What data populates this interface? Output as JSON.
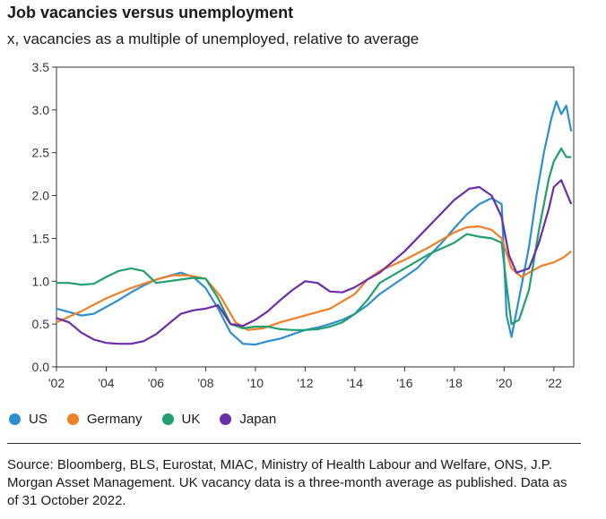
{
  "title": "Job vacancies versus unemployment",
  "subtitle": "x, vacancies as a multiple of unemployed, relative to average",
  "source": "Source: Bloomberg, BLS, Eurostat, MIAC, Ministry of Health Labour and Welfare, ONS, J.P. Morgan Asset Management. UK vacancy data is a three-month average as published. Data as of 31 October 2022.",
  "chart_data": {
    "type": "line",
    "title": "Job vacancies versus unemployment",
    "subtitle": "x, vacancies as a multiple of unemployed, relative to average",
    "ylim": [
      0,
      3.5
    ],
    "xlim": [
      2002,
      2022.8
    ],
    "yticks": [
      "0.0",
      "0.5",
      "1.0",
      "1.5",
      "2.0",
      "2.5",
      "3.0",
      "3.5"
    ],
    "ytick_values": [
      0,
      0.5,
      1.0,
      1.5,
      2.0,
      2.5,
      3.0,
      3.5
    ],
    "xticks": [
      "'02",
      "'04",
      "'06",
      "'08",
      "'10",
      "'12",
      "'14",
      "'16",
      "'18",
      "'20",
      "'22"
    ],
    "xtick_values": [
      2002,
      2004,
      2006,
      2008,
      2010,
      2012,
      2014,
      2016,
      2018,
      2020,
      2022
    ],
    "grid": false,
    "legend_position": "bottom-left",
    "series": [
      {
        "name": "US",
        "color": "#2E8FD0",
        "x": [
          2002,
          2002.5,
          2003,
          2003.5,
          2004,
          2004.5,
          2005,
          2005.5,
          2006,
          2006.5,
          2007,
          2007.5,
          2008,
          2008.5,
          2009,
          2009.5,
          2010,
          2010.5,
          2011,
          2011.5,
          2012,
          2012.5,
          2013,
          2013.5,
          2014,
          2014.5,
          2015,
          2015.5,
          2016,
          2016.5,
          2017,
          2017.5,
          2018,
          2018.5,
          2019,
          2019.5,
          2019.9,
          2020.1,
          2020.3,
          2020.6,
          2021,
          2021.3,
          2021.6,
          2021.9,
          2022.1,
          2022.3,
          2022.5,
          2022.7
        ],
        "values": [
          0.68,
          0.64,
          0.6,
          0.62,
          0.7,
          0.78,
          0.87,
          0.95,
          1.02,
          1.06,
          1.1,
          1.05,
          0.92,
          0.68,
          0.4,
          0.27,
          0.26,
          0.3,
          0.33,
          0.38,
          0.43,
          0.46,
          0.5,
          0.55,
          0.62,
          0.72,
          0.85,
          0.95,
          1.05,
          1.15,
          1.3,
          1.45,
          1.62,
          1.78,
          1.9,
          1.97,
          1.9,
          0.6,
          0.35,
          0.8,
          1.4,
          2.0,
          2.5,
          2.9,
          3.1,
          2.95,
          3.05,
          2.75
        ]
      },
      {
        "name": "Germany",
        "color": "#F07F26",
        "x": [
          2002,
          2003,
          2004,
          2005,
          2006,
          2006.7,
          2007.3,
          2008,
          2008.6,
          2009.2,
          2009.7,
          2010.3,
          2011,
          2012,
          2013,
          2014,
          2014.5,
          2015,
          2016,
          2017,
          2018,
          2018.5,
          2019,
          2019.5,
          2019.9,
          2020.3,
          2020.7,
          2021,
          2021.5,
          2022,
          2022.4,
          2022.7
        ],
        "values": [
          0.52,
          0.65,
          0.8,
          0.92,
          1.02,
          1.07,
          1.07,
          1.03,
          0.82,
          0.52,
          0.43,
          0.45,
          0.52,
          0.6,
          0.68,
          0.85,
          1.02,
          1.12,
          1.25,
          1.4,
          1.57,
          1.63,
          1.64,
          1.6,
          1.5,
          1.15,
          1.05,
          1.1,
          1.18,
          1.22,
          1.28,
          1.35
        ]
      },
      {
        "name": "UK",
        "color": "#1FA06E",
        "x": [
          2002,
          2002.5,
          2003,
          2003.5,
          2004,
          2004.5,
          2005,
          2005.5,
          2006,
          2006.5,
          2007,
          2007.5,
          2008,
          2008.5,
          2009,
          2009.5,
          2010,
          2010.5,
          2011,
          2011.5,
          2012,
          2012.5,
          2013,
          2013.5,
          2014,
          2014.5,
          2015,
          2016,
          2017,
          2018,
          2018.5,
          2019,
          2019.5,
          2019.9,
          2020.1,
          2020.3,
          2020.6,
          2021,
          2021.4,
          2021.8,
          2022,
          2022.3,
          2022.5,
          2022.7
        ],
        "values": [
          0.98,
          0.98,
          0.96,
          0.97,
          1.05,
          1.12,
          1.15,
          1.12,
          0.98,
          1.0,
          1.02,
          1.04,
          1.03,
          0.8,
          0.5,
          0.45,
          0.47,
          0.47,
          0.44,
          0.43,
          0.43,
          0.44,
          0.47,
          0.52,
          0.62,
          0.78,
          0.98,
          1.15,
          1.32,
          1.45,
          1.55,
          1.52,
          1.5,
          1.45,
          0.95,
          0.5,
          0.55,
          0.9,
          1.6,
          2.2,
          2.4,
          2.55,
          2.45,
          2.45
        ]
      },
      {
        "name": "Japan",
        "color": "#6A2EA8",
        "x": [
          2002,
          2002.5,
          2003,
          2003.5,
          2004,
          2004.5,
          2005,
          2005.5,
          2006,
          2006.5,
          2007,
          2007.5,
          2008,
          2008.5,
          2009,
          2009.5,
          2010,
          2010.5,
          2011,
          2011.5,
          2012,
          2012.5,
          2013,
          2013.5,
          2014,
          2014.5,
          2015,
          2016,
          2017,
          2018,
          2018.6,
          2019,
          2019.5,
          2019.9,
          2020.2,
          2020.5,
          2021,
          2021.4,
          2021.8,
          2022,
          2022.3,
          2022.7
        ],
        "values": [
          0.57,
          0.52,
          0.4,
          0.32,
          0.28,
          0.27,
          0.27,
          0.3,
          0.38,
          0.5,
          0.62,
          0.66,
          0.68,
          0.72,
          0.5,
          0.48,
          0.55,
          0.65,
          0.78,
          0.9,
          1.0,
          0.98,
          0.88,
          0.87,
          0.93,
          1.02,
          1.1,
          1.35,
          1.65,
          1.95,
          2.08,
          2.1,
          2.0,
          1.75,
          1.3,
          1.1,
          1.15,
          1.45,
          1.85,
          2.1,
          2.18,
          1.9
        ]
      }
    ]
  }
}
